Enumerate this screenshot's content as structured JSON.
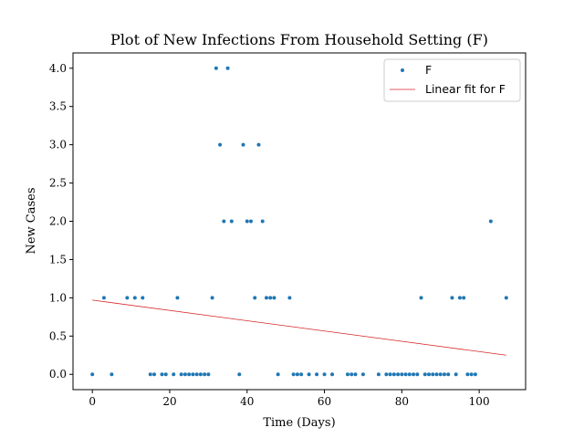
{
  "chart_data": {
    "type": "scatter",
    "title": "Plot of New Infections From Household Setting (F)",
    "xlabel": "Time (Days)",
    "ylabel": "New Cases",
    "xlim": [
      -5,
      112
    ],
    "ylim": [
      -0.2,
      4.2
    ],
    "xticks": [
      0,
      20,
      40,
      60,
      80,
      100
    ],
    "yticks": [
      0.0,
      0.5,
      1.0,
      1.5,
      2.0,
      2.5,
      3.0,
      3.5,
      4.0
    ],
    "ytick_labels": [
      "0.0",
      "0.5",
      "1.0",
      "1.5",
      "2.0",
      "2.5",
      "3.0",
      "3.5",
      "4.0"
    ],
    "grid": false,
    "legend_position": "top-right",
    "colors": {
      "points": "#1f77b4",
      "fit": "#d62728"
    },
    "series": [
      {
        "name": "F",
        "kind": "points",
        "x": [
          0,
          3,
          5,
          9,
          11,
          13,
          15,
          16,
          18,
          19,
          21,
          22,
          23,
          24,
          25,
          26,
          27,
          28,
          29,
          30,
          31,
          32,
          33,
          34,
          35,
          36,
          38,
          39,
          40,
          41,
          42,
          43,
          44,
          45,
          46,
          47,
          48,
          51,
          52,
          53,
          54,
          56,
          58,
          60,
          62,
          66,
          67,
          68,
          70,
          74,
          76,
          77,
          78,
          79,
          80,
          81,
          82,
          83,
          84,
          85,
          86,
          87,
          88,
          89,
          90,
          91,
          92,
          93,
          94,
          95,
          96,
          97,
          98,
          99,
          103,
          107
        ],
        "y": [
          0,
          1,
          0,
          1,
          1,
          1,
          0,
          0,
          0,
          0,
          0,
          1,
          0,
          0,
          0,
          0,
          0,
          0,
          0,
          0,
          1,
          4,
          3,
          2,
          4,
          2,
          0,
          3,
          2,
          2,
          1,
          3,
          2,
          1,
          1,
          1,
          0,
          1,
          0,
          0,
          0,
          0,
          0,
          0,
          0,
          0,
          0,
          0,
          0,
          0,
          0,
          0,
          0,
          0,
          0,
          0,
          0,
          0,
          0,
          1,
          0,
          0,
          0,
          0,
          0,
          0,
          0,
          1,
          0,
          1,
          1,
          0,
          0,
          0,
          2,
          1
        ]
      },
      {
        "name": "Linear fit for F",
        "kind": "line",
        "x": [
          0,
          107
        ],
        "y": [
          0.97,
          0.25
        ]
      }
    ]
  }
}
